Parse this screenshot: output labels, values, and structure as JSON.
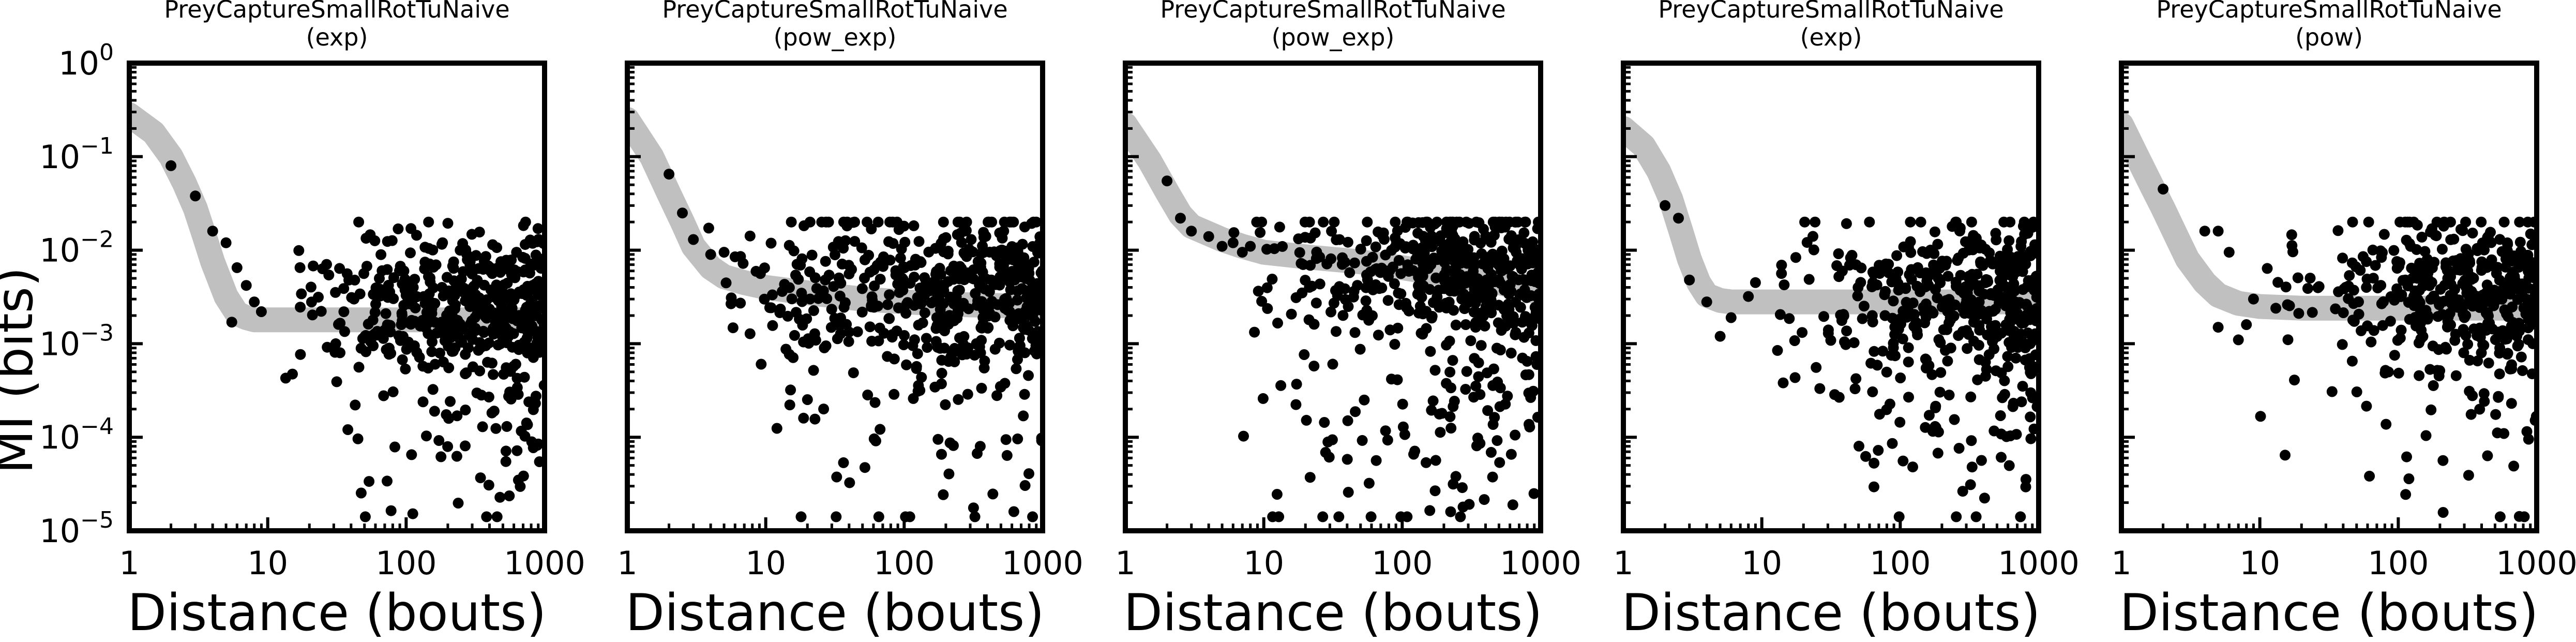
{
  "figure": {
    "ylabel": "MI (bits)"
  },
  "colors": {
    "points": "#000000",
    "fit_band": "#c0c0c0",
    "frame": "#000000",
    "background": "#ffffff"
  },
  "chart_data": [
    {
      "type": "scatter",
      "title": "PreyCaptureSmallRotTuNaive",
      "subtitle": "(exp)",
      "xlabel": "Distance (bouts)",
      "ylabel": "MI (bits)",
      "x_scale": "log",
      "y_scale": "log",
      "xlim": [
        1,
        1000
      ],
      "ylim": [
        1e-05,
        1
      ],
      "x_ticks": [
        {
          "value": 1,
          "label": "1"
        },
        {
          "value": 10,
          "label": "10"
        },
        {
          "value": 100,
          "label": "100"
        },
        {
          "value": 1000,
          "label": "1000"
        }
      ],
      "y_ticks": [
        {
          "value": 1,
          "base": "10",
          "exp": "0"
        },
        {
          "value": 0.1,
          "base": "10",
          "exp": "−1"
        },
        {
          "value": 0.01,
          "base": "10",
          "exp": "−2"
        },
        {
          "value": 0.001,
          "base": "10",
          "exp": "−3"
        },
        {
          "value": 0.0001,
          "base": "10",
          "exp": "−4"
        },
        {
          "value": 1e-05,
          "base": "10",
          "exp": "−5"
        }
      ],
      "grid": false,
      "fit": {
        "model": "exp",
        "x": [
          1,
          1.5,
          2,
          2.5,
          3,
          3.5,
          4,
          5,
          6,
          7,
          8,
          10,
          20,
          50,
          100,
          300,
          1000
        ],
        "y": [
          0.28,
          0.18,
          0.1,
          0.052,
          0.028,
          0.014,
          0.0075,
          0.0032,
          0.0021,
          0.0019,
          0.0018,
          0.0018,
          0.0018,
          0.0018,
          0.0018,
          0.0018,
          0.0018
        ]
      },
      "points": {
        "cloud_start": 10,
        "median": 0.0028,
        "spread_decades": 0.35,
        "tail_decades": 1.6,
        "tail_fraction": 0.22,
        "count": 520,
        "seed": 11,
        "early": [
          [
            2,
            0.08
          ],
          [
            3,
            0.038
          ],
          [
            4,
            0.016
          ],
          [
            5,
            0.012
          ],
          [
            6,
            0.0065
          ],
          [
            7,
            0.0042
          ],
          [
            5.5,
            0.0017
          ],
          [
            8,
            0.0028
          ],
          [
            9,
            0.0022
          ]
        ]
      }
    },
    {
      "type": "scatter",
      "title": "PreyCaptureSmallRotTuNaive",
      "subtitle": "(pow_exp)",
      "xlabel": "Distance (bouts)",
      "ylabel": "",
      "x_scale": "log",
      "y_scale": "log",
      "xlim": [
        1,
        1000
      ],
      "ylim": [
        1e-05,
        1
      ],
      "x_ticks": [
        {
          "value": 1,
          "label": "1"
        },
        {
          "value": 10,
          "label": "10"
        },
        {
          "value": 100,
          "label": "100"
        },
        {
          "value": 1000,
          "label": "1000"
        }
      ],
      "y_ticks": [],
      "grid": false,
      "fit": {
        "model": "pow_exp",
        "x": [
          1,
          1.5,
          2,
          2.5,
          3,
          4,
          5,
          7,
          10,
          20,
          50,
          100,
          300,
          1000
        ],
        "y": [
          0.25,
          0.1,
          0.04,
          0.02,
          0.011,
          0.0065,
          0.0052,
          0.0045,
          0.004,
          0.0035,
          0.003,
          0.0028,
          0.0026,
          0.0025
        ]
      },
      "points": {
        "cloud_start": 3,
        "median": 0.0045,
        "spread_decades": 0.38,
        "tail_decades": 1.7,
        "tail_fraction": 0.25,
        "count": 560,
        "seed": 23,
        "early": [
          [
            2,
            0.065
          ],
          [
            2.5,
            0.025
          ],
          [
            3,
            0.013
          ],
          [
            4,
            0.009
          ],
          [
            5,
            0.0095
          ],
          [
            6,
            0.0085
          ]
        ]
      }
    },
    {
      "type": "scatter",
      "title": "PreyCaptureSmallRotTuNaive",
      "subtitle": "(pow_exp)",
      "xlabel": "Distance (bouts)",
      "ylabel": "",
      "x_scale": "log",
      "y_scale": "log",
      "xlim": [
        1,
        1000
      ],
      "ylim": [
        1e-05,
        1
      ],
      "x_ticks": [
        {
          "value": 1,
          "label": "1"
        },
        {
          "value": 10,
          "label": "10"
        },
        {
          "value": 100,
          "label": "100"
        },
        {
          "value": 1000,
          "label": "1000"
        }
      ],
      "y_ticks": [],
      "grid": false,
      "fit": {
        "model": "pow_exp",
        "x": [
          1,
          1.5,
          2,
          2.5,
          3,
          4,
          5,
          7,
          10,
          20,
          50,
          100,
          200,
          500,
          1000
        ],
        "y": [
          0.22,
          0.09,
          0.042,
          0.024,
          0.018,
          0.015,
          0.013,
          0.011,
          0.0095,
          0.0085,
          0.0075,
          0.0065,
          0.0055,
          0.0045,
          0.0035
        ]
      },
      "points": {
        "cloud_start": 5,
        "median": 0.0075,
        "spread_decades": 0.35,
        "tail_decades": 2.2,
        "tail_fraction": 0.3,
        "count": 560,
        "seed": 37,
        "early": [
          [
            2,
            0.055
          ],
          [
            2.5,
            0.022
          ],
          [
            3,
            0.016
          ],
          [
            4,
            0.014
          ],
          [
            5,
            0.011
          ],
          [
            6,
            0.012
          ],
          [
            7,
            0.0095
          ],
          [
            8,
            0.011
          ]
        ]
      }
    },
    {
      "type": "scatter",
      "title": "PreyCaptureSmallRotTuNaive",
      "subtitle": "(exp)",
      "xlabel": "Distance (bouts)",
      "ylabel": "",
      "x_scale": "log",
      "y_scale": "log",
      "xlim": [
        1,
        1000
      ],
      "ylim": [
        1e-05,
        1
      ],
      "x_ticks": [
        {
          "value": 1,
          "label": "1"
        },
        {
          "value": 10,
          "label": "10"
        },
        {
          "value": 100,
          "label": "100"
        },
        {
          "value": 1000,
          "label": "1000"
        }
      ],
      "y_ticks": [],
      "grid": false,
      "fit": {
        "model": "exp",
        "x": [
          1,
          1.4,
          1.8,
          2.2,
          2.6,
          3,
          3.5,
          4,
          5,
          6,
          10,
          100,
          1000
        ],
        "y": [
          0.2,
          0.13,
          0.07,
          0.035,
          0.016,
          0.008,
          0.0045,
          0.0033,
          0.0029,
          0.0028,
          0.0028,
          0.0028,
          0.0028
        ]
      },
      "points": {
        "cloud_start": 10,
        "median": 0.0035,
        "spread_decades": 0.4,
        "tail_decades": 1.8,
        "tail_fraction": 0.22,
        "count": 470,
        "seed": 53,
        "early": [
          [
            2,
            0.03
          ],
          [
            2.5,
            0.022
          ],
          [
            3,
            0.0048
          ],
          [
            4,
            0.0028
          ],
          [
            5,
            0.0012
          ],
          [
            6,
            0.0019
          ],
          [
            8,
            0.0032
          ],
          [
            9,
            0.0045
          ]
        ]
      }
    },
    {
      "type": "scatter",
      "title": "PreyCaptureSmallRotTuNaive",
      "subtitle": "(pow)",
      "xlabel": "Distance (bouts)",
      "ylabel": "",
      "x_scale": "log",
      "y_scale": "log",
      "xlim": [
        1,
        1000
      ],
      "ylim": [
        1e-05,
        1
      ],
      "x_ticks": [
        {
          "value": 1,
          "label": "1"
        },
        {
          "value": 10,
          "label": "10"
        },
        {
          "value": 100,
          "label": "100"
        },
        {
          "value": 1000,
          "label": "1000"
        }
      ],
      "y_ticks": [],
      "grid": false,
      "fit": {
        "model": "pow",
        "x": [
          1,
          1.3,
          1.7,
          2,
          2.5,
          3,
          4,
          5,
          7,
          10,
          20,
          50,
          1000
        ],
        "y": [
          0.22,
          0.1,
          0.045,
          0.028,
          0.014,
          0.008,
          0.0045,
          0.0033,
          0.0027,
          0.0025,
          0.0024,
          0.0024,
          0.0024
        ]
      },
      "points": {
        "cloud_start": 10,
        "median": 0.0045,
        "spread_decades": 0.4,
        "tail_decades": 1.8,
        "tail_fraction": 0.22,
        "count": 440,
        "seed": 71,
        "early": [
          [
            2,
            0.045
          ],
          [
            4,
            0.016
          ],
          [
            5,
            0.016
          ],
          [
            6,
            0.0095
          ],
          [
            5,
            0.0015
          ],
          [
            7,
            0.0011
          ],
          [
            8,
            0.0016
          ],
          [
            9,
            0.003
          ]
        ]
      }
    }
  ]
}
